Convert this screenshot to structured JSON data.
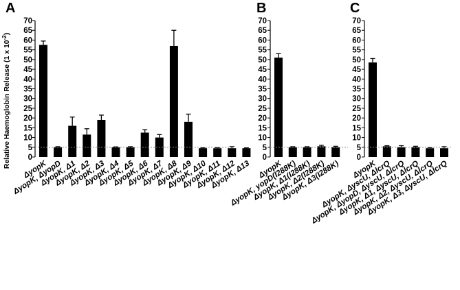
{
  "chart_data": [
    {
      "type": "bar",
      "panel": "A",
      "ylabel": "Relative Haemoglobin Release (1 x 10",
      "ylabel_exponent": "-2",
      "ylabel_close": ")",
      "ylim": [
        0,
        70
      ],
      "yticks": [
        "0",
        "5",
        "10",
        "15",
        "20",
        "25",
        "30",
        "35",
        "40",
        "45",
        "50",
        "55",
        "60",
        "65",
        "70"
      ],
      "baseline": 5,
      "categories": [
        "ΔyopK",
        "ΔyopK, ΔyopD",
        "ΔyopK, Δ1",
        "ΔyopK, Δ2",
        "ΔyopK, Δ3",
        "ΔyopK, Δ4",
        "ΔyopK, Δ5",
        "ΔyopK, Δ6",
        "ΔyopK, Δ7",
        "ΔyopK, Δ8",
        "ΔyopK, Δ9",
        "ΔyopK, Δ10",
        "ΔyopK, Δ11",
        "ΔyopK, Δ12",
        "ΔyopK, Δ13"
      ],
      "values": [
        57.5,
        5,
        16,
        11.5,
        19,
        5,
        5,
        12.5,
        10,
        57,
        18,
        4.5,
        4.5,
        4.5,
        4.5
      ],
      "errors": [
        2,
        0.3,
        4.5,
        3,
        2.5,
        0.2,
        0.3,
        1.5,
        1.5,
        8,
        4,
        0.2,
        0.3,
        0.8,
        0.2
      ]
    },
    {
      "type": "bar",
      "panel": "B",
      "ylim": [
        0,
        70
      ],
      "yticks": [
        "0",
        "5",
        "10",
        "15",
        "20",
        "25",
        "30",
        "35",
        "40",
        "45",
        "50",
        "55",
        "60",
        "65",
        "70"
      ],
      "baseline": 5,
      "categories": [
        "ΔyopK",
        "ΔyopK, yopD(I288K)",
        "ΔyopK, Δ1(I288K)",
        "ΔyopK, Δ2(I288K)",
        "ΔyopK, Δ3(I288K)"
      ],
      "values": [
        51,
        5,
        5,
        5.5,
        5
      ],
      "errors": [
        2,
        0.3,
        0.3,
        0.5,
        0.5
      ]
    },
    {
      "type": "bar",
      "panel": "C",
      "ylim": [
        0,
        70
      ],
      "yticks": [
        "0",
        "5",
        "10",
        "15",
        "20",
        "25",
        "30",
        "35",
        "40",
        "45",
        "50",
        "55",
        "60",
        "65",
        "70"
      ],
      "baseline": 5,
      "categories": [
        "ΔyopK",
        "ΔyopK, ΔyscU, ΔlcrQ",
        "ΔyopK, ΔyopD, ΔyscU, ΔlcrQ",
        "ΔyopK, Δ1, ΔyscU, ΔlcrQ",
        "ΔyopK, Δ2, ΔyscU, ΔlcrQ",
        "ΔyopK, Δ3, ΔyscU, ΔlcrQ"
      ],
      "values": [
        48.5,
        5.5,
        5,
        5,
        4.5,
        4.5
      ],
      "errors": [
        2,
        0.3,
        0.8,
        0.5,
        0.3,
        0.8
      ]
    }
  ]
}
